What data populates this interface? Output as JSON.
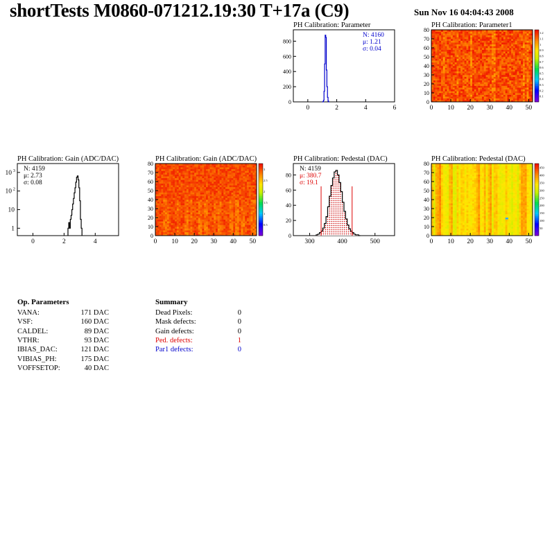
{
  "header": {
    "title": "shortTests M0860-071212.19:30 T+17a (C9)",
    "date": "Sun Nov 16 04:04:43 2008"
  },
  "colors": {
    "blue": "#0000cc",
    "red": "#dd0000",
    "black": "#000000"
  },
  "chart_data": [
    {
      "id": "param-hist",
      "type": "histogram",
      "title": "PH Calibration: Parameter",
      "xlim": [
        -1,
        6
      ],
      "ylim": [
        0,
        950
      ],
      "xticks": [
        0,
        2,
        4,
        6
      ],
      "yticks": [
        0,
        200,
        400,
        600,
        800
      ],
      "line_color": "#0000cc",
      "stats": [
        {
          "text": "N: 4160",
          "color": "#0000cc"
        },
        {
          "text": "μ: 1.21",
          "color": "#0000cc"
        },
        {
          "text": "σ: 0.04",
          "color": "#0000cc"
        }
      ],
      "x": [
        1.0,
        1.04,
        1.08,
        1.12,
        1.16,
        1.2,
        1.24,
        1.28,
        1.32,
        1.36,
        1.4,
        1.44
      ],
      "values": [
        0,
        3,
        20,
        140,
        500,
        880,
        850,
        420,
        200,
        60,
        10,
        0
      ]
    },
    {
      "id": "param-map",
      "type": "heatmap",
      "title": "PH Calibration: Parameter1",
      "xlim": [
        0,
        52
      ],
      "ylim": [
        0,
        80
      ],
      "xticks": [
        0,
        10,
        20,
        30,
        40,
        50
      ],
      "yticks": [
        0,
        10,
        20,
        30,
        40,
        50,
        60,
        70,
        80
      ],
      "zticks": [
        "0.1",
        "0.2",
        "0.3",
        "0.4",
        "0.5",
        "0.6",
        "0.7",
        "0.8",
        "0.9",
        "1",
        "1.1",
        "1.2"
      ],
      "dominant": "red-orange"
    },
    {
      "id": "gain-hist",
      "type": "histogram",
      "title": "PH Calibration: Gain (ADC/DAC)",
      "log_y": true,
      "xlim": [
        -1,
        5.5
      ],
      "ylim": [
        0.4,
        3000
      ],
      "xticks": [
        0,
        2,
        4
      ],
      "yticks": [
        {
          "value": 1,
          "base": "1",
          "exp": ""
        },
        {
          "value": 10,
          "base": "10",
          "exp": ""
        },
        {
          "value": 100,
          "base": "10",
          "exp": "2"
        },
        {
          "value": 1000,
          "base": "10",
          "exp": "3"
        }
      ],
      "line_color": "#000000",
      "stats": [
        {
          "text": "N: 4159",
          "color": "#000000"
        },
        {
          "text": "μ: 2.73",
          "color": "#000000"
        },
        {
          "text": "σ: 0.08",
          "color": "#000000"
        }
      ],
      "x": [
        2.25,
        2.3,
        2.35,
        2.4,
        2.45,
        2.5,
        2.55,
        2.6,
        2.65,
        2.7,
        2.75,
        2.8,
        2.85,
        2.9,
        2.95,
        3.0,
        3.05,
        3.1
      ],
      "values": [
        1,
        2,
        1,
        3,
        5,
        10,
        20,
        40,
        80,
        150,
        300,
        550,
        650,
        400,
        150,
        30,
        3,
        1
      ]
    },
    {
      "id": "gain-map",
      "type": "heatmap",
      "title": "PH Calibration: Gain (ADC/DAC)",
      "xlim": [
        0,
        52
      ],
      "ylim": [
        0,
        80
      ],
      "xticks": [
        0,
        10,
        20,
        30,
        40,
        50
      ],
      "yticks": [
        0,
        10,
        20,
        30,
        40,
        50,
        60,
        70,
        80
      ],
      "zticks": [
        "0.5",
        "1",
        "1.5",
        "2",
        "2.5",
        "3"
      ],
      "dominant": "orange-red"
    },
    {
      "id": "ped-hist",
      "type": "histogram",
      "title": "PH Calibration: Pedestal (DAC)",
      "xlim": [
        250,
        560
      ],
      "ylim": [
        0,
        95
      ],
      "xticks": [
        300,
        400,
        500
      ],
      "yticks": [
        0,
        20,
        40,
        60,
        80
      ],
      "line_color": "#000000",
      "fill": "hatched-red",
      "cut_lines": [
        335,
        430
      ],
      "stats": [
        {
          "text": "N: 4159",
          "color": "#000000"
        },
        {
          "text": "μ: 380.7",
          "color": "#dd0000"
        },
        {
          "text": "σ: 19.1",
          "color": "#dd0000"
        }
      ],
      "x": [
        320,
        325,
        330,
        335,
        340,
        345,
        350,
        355,
        360,
        365,
        370,
        375,
        380,
        385,
        390,
        395,
        400,
        405,
        410,
        415,
        420,
        425,
        430,
        435,
        440,
        445,
        450
      ],
      "values": [
        1,
        2,
        4,
        6,
        10,
        16,
        25,
        38,
        52,
        66,
        76,
        84,
        86,
        80,
        70,
        58,
        44,
        32,
        22,
        14,
        9,
        6,
        4,
        2,
        1,
        1,
        0
      ]
    },
    {
      "id": "ped-map",
      "type": "heatmap",
      "title": "PH Calibration: Pedestal (DAC)",
      "xlim": [
        0,
        52
      ],
      "ylim": [
        0,
        80
      ],
      "xticks": [
        0,
        10,
        20,
        30,
        40,
        50
      ],
      "yticks": [
        0,
        10,
        20,
        30,
        40,
        50,
        60,
        70,
        80
      ],
      "zticks": [
        "50",
        "100",
        "150",
        "200",
        "250",
        "300",
        "350",
        "400",
        "450"
      ],
      "dominant": "yellow-orange"
    }
  ],
  "op_parameters": {
    "heading": "Op. Parameters",
    "rows": [
      {
        "label": "VANA:",
        "value": "171 DAC"
      },
      {
        "label": "VSF:",
        "value": "160 DAC"
      },
      {
        "label": "CALDEL:",
        "value": "89 DAC"
      },
      {
        "label": "VTHR:",
        "value": "93 DAC"
      },
      {
        "label": "IBIAS_DAC:",
        "value": "121 DAC"
      },
      {
        "label": "VIBIAS_PH:",
        "value": "175 DAC"
      },
      {
        "label": "VOFFSETOP:",
        "value": "40 DAC"
      }
    ]
  },
  "summary": {
    "heading": "Summary",
    "rows": [
      {
        "label": "Dead Pixels:",
        "value": "0",
        "color": "#000000"
      },
      {
        "label": "Mask defects:",
        "value": "0",
        "color": "#000000"
      },
      {
        "label": "Gain defects:",
        "value": "0",
        "color": "#000000"
      },
      {
        "label": "Ped. defects:",
        "value": "1",
        "color": "#dd0000"
      },
      {
        "label": "Par1 defects:",
        "value": "0",
        "color": "#0000cc"
      }
    ]
  }
}
